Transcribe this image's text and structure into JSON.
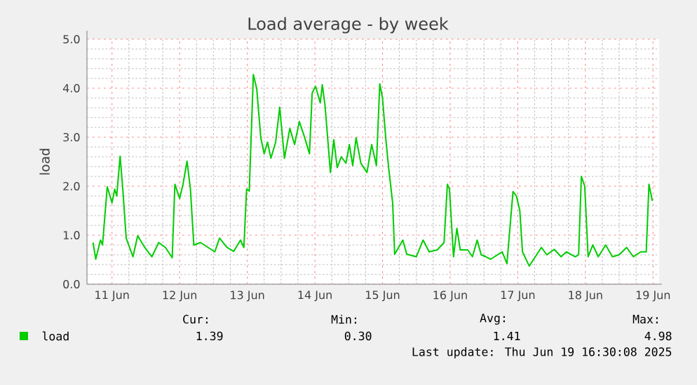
{
  "chart_data": {
    "type": "line",
    "title": "Load average - by week",
    "ylabel": "load",
    "x": [
      "2025-06-10T17:17",
      "2025-06-10T18:14",
      "2025-06-10T19:55",
      "2025-06-10T20:38",
      "2025-06-10T22:19",
      "2025-06-11T00:00",
      "2025-06-11T00:58",
      "2025-06-11T01:41",
      "2025-06-11T02:53",
      "2025-06-11T03:50",
      "2025-06-11T05:02",
      "2025-06-11T07:26",
      "2025-06-11T09:07",
      "2025-06-11T11:31",
      "2025-06-11T14:10",
      "2025-06-11T16:34",
      "2025-06-11T18:58",
      "2025-06-11T21:22",
      "2025-06-11T22:19",
      "2025-06-12T00:00",
      "2025-06-12T01:12",
      "2025-06-12T02:38",
      "2025-06-12T03:50",
      "2025-06-12T05:02",
      "2025-06-12T07:26",
      "2025-06-12T10:05",
      "2025-06-12T12:29",
      "2025-06-12T14:10",
      "2025-06-12T16:48",
      "2025-06-12T19:12",
      "2025-06-12T21:36",
      "2025-06-12T22:48",
      "2025-06-12T23:46",
      "2025-06-13T00:43",
      "2025-06-13T02:10",
      "2025-06-13T03:22",
      "2025-06-13T04:48",
      "2025-06-13T06:00",
      "2025-06-13T07:12",
      "2025-06-13T08:24",
      "2025-06-13T10:05",
      "2025-06-13T11:31",
      "2025-06-13T13:12",
      "2025-06-13T15:07",
      "2025-06-13T16:48",
      "2025-06-13T18:29",
      "2025-06-13T20:10",
      "2025-06-13T22:05",
      "2025-06-13T23:02",
      "2025-06-14T00:14",
      "2025-06-14T01:55",
      "2025-06-14T02:38",
      "2025-06-14T03:36",
      "2025-06-14T05:31",
      "2025-06-14T06:43",
      "2025-06-14T07:55",
      "2025-06-14T09:22",
      "2025-06-14T11:02",
      "2025-06-14T12:14",
      "2025-06-14T13:26",
      "2025-06-14T14:38",
      "2025-06-14T16:19",
      "2025-06-14T18:29",
      "2025-06-14T20:10",
      "2025-06-14T21:50",
      "2025-06-14T23:02",
      "2025-06-15T00:00",
      "2025-06-15T01:12",
      "2025-06-15T02:10",
      "2025-06-15T03:36",
      "2025-06-15T04:19",
      "2025-06-15T07:12",
      "2025-06-15T08:38",
      "2025-06-15T12:00",
      "2025-06-15T14:24",
      "2025-06-15T16:34",
      "2025-06-15T19:26",
      "2025-06-15T21:50",
      "2025-06-15T23:02",
      "2025-06-15T23:46",
      "2025-06-16T01:12",
      "2025-06-16T02:24",
      "2025-06-16T03:36",
      "2025-06-16T06:14",
      "2025-06-16T07:55",
      "2025-06-16T09:36",
      "2025-06-16T11:02",
      "2025-06-16T12:43",
      "2025-06-16T14:24",
      "2025-06-16T18:29",
      "2025-06-16T20:10",
      "2025-06-16T22:19",
      "2025-06-16T23:31",
      "2025-06-17T00:43",
      "2025-06-17T01:41",
      "2025-06-17T04:05",
      "2025-06-17T06:14",
      "2025-06-17T08:24",
      "2025-06-17T10:19",
      "2025-06-17T12:58",
      "2025-06-17T15:22",
      "2025-06-17T17:17",
      "2025-06-17T20:24",
      "2025-06-17T21:36",
      "2025-06-17T22:34",
      "2025-06-17T23:46",
      "2025-06-18T00:58",
      "2025-06-18T02:38",
      "2025-06-18T04:34",
      "2025-06-18T07:12",
      "2025-06-18T09:36",
      "2025-06-18T12:00",
      "2025-06-18T14:38",
      "2025-06-18T17:02",
      "2025-06-18T19:41",
      "2025-06-18T21:36",
      "2025-06-18T22:34",
      "2025-06-18T23:46"
    ],
    "series": [
      {
        "name": "load",
        "color": "#00cc00",
        "values": [
          0.85,
          0.51,
          0.9,
          0.8,
          1.99,
          1.66,
          1.94,
          1.8,
          2.61,
          1.94,
          0.94,
          0.56,
          0.99,
          0.76,
          0.56,
          0.85,
          0.75,
          0.54,
          2.04,
          1.75,
          2.04,
          2.51,
          1.94,
          0.8,
          0.85,
          0.75,
          0.66,
          0.94,
          0.75,
          0.67,
          0.9,
          0.75,
          1.94,
          1.9,
          4.28,
          3.99,
          2.99,
          2.66,
          2.9,
          2.57,
          2.9,
          3.61,
          2.57,
          3.18,
          2.85,
          3.32,
          3.03,
          2.66,
          3.9,
          4.04,
          3.7,
          4.07,
          3.65,
          2.28,
          2.95,
          2.38,
          2.6,
          2.47,
          2.85,
          2.42,
          2.99,
          2.47,
          2.28,
          2.85,
          2.42,
          4.09,
          3.8,
          2.95,
          2.38,
          1.66,
          0.61,
          0.9,
          0.61,
          0.56,
          0.9,
          0.66,
          0.7,
          0.85,
          2.04,
          1.94,
          0.56,
          1.14,
          0.7,
          0.7,
          0.56,
          0.9,
          0.6,
          0.56,
          0.51,
          0.66,
          0.42,
          1.89,
          1.8,
          1.51,
          0.66,
          0.37,
          0.56,
          0.75,
          0.6,
          0.71,
          0.56,
          0.66,
          0.56,
          0.6,
          2.2,
          2.0,
          0.56,
          0.8,
          0.56,
          0.8,
          0.56,
          0.6,
          0.75,
          0.56,
          0.66,
          0.66,
          2.04,
          1.7
        ]
      }
    ],
    "xlim": [
      "2025-06-10T15:07",
      "2025-06-19T02:10"
    ],
    "ylim": [
      0,
      5
    ],
    "xticks": [
      {
        "value": "2025-06-11",
        "label": "11 Jun"
      },
      {
        "value": "2025-06-12",
        "label": "12 Jun"
      },
      {
        "value": "2025-06-13",
        "label": "13 Jun"
      },
      {
        "value": "2025-06-14",
        "label": "14 Jun"
      },
      {
        "value": "2025-06-15",
        "label": "15 Jun"
      },
      {
        "value": "2025-06-16",
        "label": "16 Jun"
      },
      {
        "value": "2025-06-17",
        "label": "17 Jun"
      },
      {
        "value": "2025-06-18",
        "label": "18 Jun"
      },
      {
        "value": "2025-06-19",
        "label": "19 Jun"
      }
    ],
    "yticks": [
      {
        "value": 0,
        "label": "0.0"
      },
      {
        "value": 1,
        "label": "1.0"
      },
      {
        "value": 2,
        "label": "2.0"
      },
      {
        "value": 3,
        "label": "3.0"
      },
      {
        "value": 4,
        "label": "4.0"
      },
      {
        "value": 5,
        "label": "5.0"
      }
    ],
    "grid": true,
    "legend": "bottom",
    "annotations": [
      "Cur:",
      "Min:",
      "Avg:",
      "Max:",
      "1.39",
      "0.30",
      "1.41",
      "4.98",
      "Last update: Thu Jun 19 16:30:08 2025"
    ]
  }
}
